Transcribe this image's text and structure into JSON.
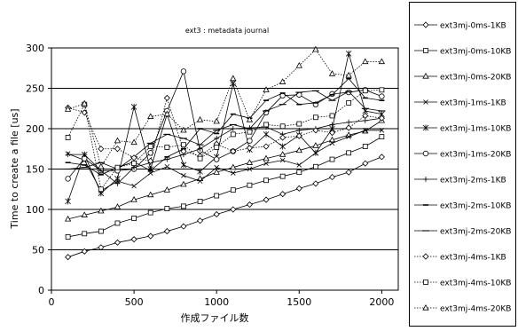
{
  "chart_data": {
    "type": "line",
    "title": "ext3 : metadata journal",
    "xlabel": "作成ファイル数",
    "ylabel": "Time to create a file [us]",
    "xlim": [
      0,
      2100
    ],
    "ylim": [
      0,
      300
    ],
    "xticks": [
      0,
      500,
      1000,
      1500,
      2000
    ],
    "yticks": [
      0,
      50,
      100,
      150,
      200,
      250,
      300
    ],
    "grid": "horizontal",
    "legend_position": "right",
    "x": [
      100,
      200,
      300,
      400,
      500,
      600,
      700,
      800,
      900,
      1000,
      1100,
      1200,
      1300,
      1400,
      1500,
      1600,
      1700,
      1800,
      1900,
      2000
    ],
    "series": [
      {
        "name": "ext3mj-0ms-1KB",
        "marker": "diamond",
        "dash": "solid",
        "values": [
          41,
          48,
          53,
          59,
          63,
          67,
          73,
          79,
          86,
          94,
          100,
          106,
          112,
          119,
          126,
          132,
          140,
          146,
          157,
          165
        ]
      },
      {
        "name": "ext3mj-0ms-10KB",
        "marker": "square",
        "dash": "solid",
        "values": [
          66,
          70,
          73,
          83,
          89,
          96,
          101,
          104,
          110,
          117,
          124,
          130,
          136,
          141,
          146,
          153,
          162,
          170,
          178,
          190
        ]
      },
      {
        "name": "ext3mj-0ms-20KB",
        "marker": "triangle",
        "dash": "solid",
        "values": [
          88,
          93,
          98,
          103,
          112,
          118,
          124,
          131,
          138,
          146,
          152,
          158,
          163,
          168,
          173,
          179,
          186,
          192,
          197,
          210
        ]
      },
      {
        "name": "ext3mj-1ms-1KB",
        "marker": "x",
        "dash": "solid",
        "values": [
          169,
          161,
          123,
          135,
          129,
          145,
          153,
          142,
          135,
          152,
          145,
          150,
          157,
          161,
          155,
          170,
          182,
          190,
          198,
          198
        ]
      },
      {
        "name": "ext3mj-1ms-10KB",
        "marker": "star",
        "dash": "solid",
        "values": [
          110,
          168,
          120,
          138,
          227,
          150,
          218,
          155,
          147,
          165,
          256,
          174,
          193,
          178,
          192,
          170,
          200,
          293,
          222,
          218
        ]
      },
      {
        "name": "ext3mj-1ms-20KB",
        "marker": "circle",
        "dash": "solid",
        "values": [
          138,
          163,
          148,
          148,
          150,
          170,
          222,
          271,
          173,
          162,
          172,
          185,
          220,
          241,
          242,
          230,
          243,
          245,
          248,
          240
        ]
      },
      {
        "name": "ext3mj-2ms-1KB",
        "marker": "plus",
        "dash": "solid",
        "values": [
          168,
          168,
          148,
          132,
          152,
          158,
          162,
          168,
          175,
          188,
          200,
          201,
          202,
          193,
          198,
          200,
          205,
          208,
          210,
          213
        ]
      },
      {
        "name": "ext3mj-2ms-10KB",
        "marker": "dash",
        "dash": "solid",
        "values": [
          158,
          155,
          143,
          152,
          159,
          148,
          165,
          175,
          200,
          194,
          218,
          213,
          235,
          244,
          230,
          232,
          242,
          262,
          238,
          235
        ]
      },
      {
        "name": "ext3mj-2ms-20KB",
        "marker": "line",
        "dash": "solid",
        "values": [
          150,
          152,
          158,
          150,
          165,
          182,
          193,
          188,
          180,
          198,
          205,
          200,
          222,
          230,
          245,
          247,
          235,
          246,
          225,
          222
        ]
      },
      {
        "name": "ext3mj-4ms-1KB",
        "marker": "diamond",
        "dash": "dotted",
        "values": [
          226,
          220,
          175,
          175,
          164,
          160,
          238,
          172,
          166,
          181,
          172,
          176,
          178,
          189,
          191,
          198,
          195,
          201,
          216,
          213
        ]
      },
      {
        "name": "ext3mj-4ms-10KB",
        "marker": "square",
        "dash": "dotted",
        "values": [
          189,
          230,
          125,
          152,
          157,
          178,
          177,
          180,
          163,
          177,
          193,
          196,
          205,
          203,
          206,
          214,
          216,
          232,
          247,
          248
        ]
      },
      {
        "name": "ext3mj-4ms-20KB",
        "marker": "triangle",
        "dash": "dotted",
        "values": [
          224,
          231,
          153,
          185,
          183,
          215,
          218,
          198,
          211,
          209,
          262,
          211,
          248,
          258,
          278,
          298,
          268,
          266,
          283,
          283
        ]
      }
    ]
  }
}
